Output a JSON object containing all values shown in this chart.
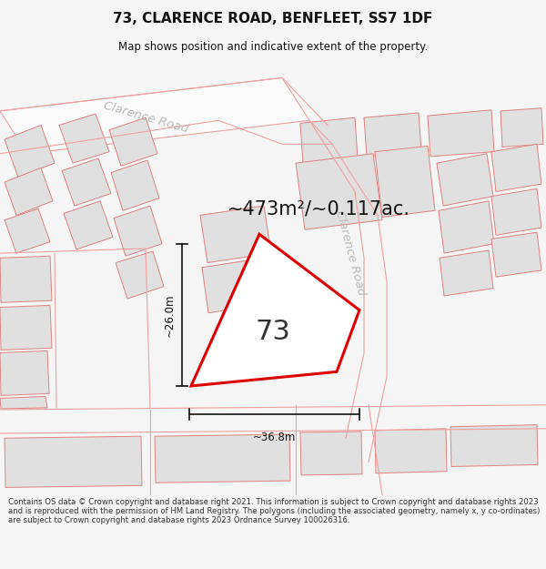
{
  "title": "73, CLARENCE ROAD, BENFLEET, SS7 1DF",
  "subtitle": "Map shows position and indicative extent of the property.",
  "area_text": "~473m²/~0.117ac.",
  "property_number": "73",
  "dim_width": "~36.8m",
  "dim_height": "~26.0m",
  "road_label_top": "Clarence Road",
  "road_label_right": "Clarence Road",
  "footer": "Contains OS data © Crown copyright and database right 2021. This information is subject to Crown copyright and database rights 2023 and is reproduced with the permission of HM Land Registry. The polygons (including the associated geometry, namely x, y co-ordinates) are subject to Crown copyright and database rights 2023 Ordnance Survey 100026316.",
  "bg_color": "#f5f5f5",
  "map_bg": "#ffffff",
  "plot_fill": "#ffffff",
  "plot_edge": "#dd0000",
  "building_fill": "#e0e0e0",
  "building_edge": "#e08080",
  "road_line_color": "#f0a0a0",
  "road_label_color": "#bbbbbb",
  "title_color": "#111111",
  "footer_color": "#333333",
  "dim_color": "#111111",
  "map_border_color": "#cccccc"
}
